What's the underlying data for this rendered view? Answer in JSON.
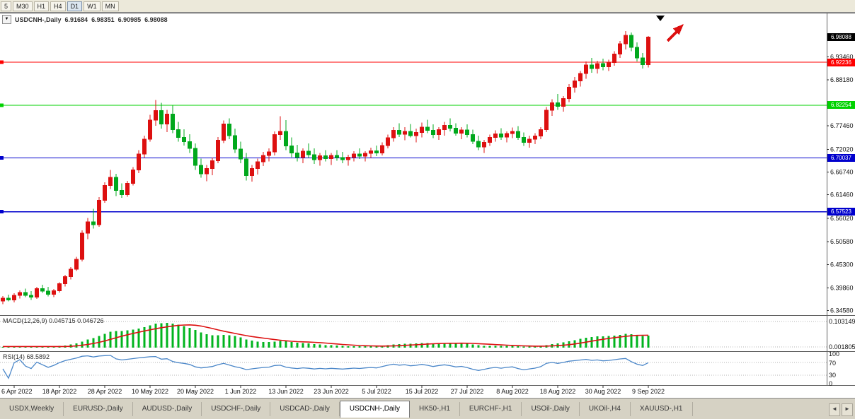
{
  "colors": {
    "up": "#dd1010",
    "down": "#00a81c",
    "macd_hist": "#00b41e",
    "macd_signal": "#dd1010",
    "rsi_line": "#4a86c8",
    "current_price_bg": "#000000",
    "hline_red": "#ff0000",
    "hline_green": "#00d200",
    "hline_blue": "#0000cd"
  },
  "toolbar": {
    "timeframes": [
      "5",
      "M30",
      "H1",
      "H4",
      "D1",
      "W1",
      "MN"
    ],
    "active": "D1"
  },
  "chart": {
    "title": {
      "symbol_period": "USDCNH-,Daily",
      "open": "6.91684",
      "high": "6.98351",
      "low": "6.90985",
      "close": "6.98088"
    },
    "current_price": "6.98088",
    "price_axis_ticks": [
      "6.93460",
      "6.88180",
      "6.77460",
      "6.72020",
      "6.66740",
      "6.61460",
      "6.56020",
      "6.50580",
      "6.45300",
      "6.39860",
      "6.34580"
    ],
    "hlines": [
      {
        "label": "6.92236",
        "value": 6.92236,
        "color": "#ff0000"
      },
      {
        "label": "6.82254",
        "value": 6.82254,
        "color": "#00d200"
      },
      {
        "label": "6.70037",
        "value": 6.70037,
        "color": "#0000cd"
      },
      {
        "label": "6.57523",
        "value": 6.57523,
        "color": "#0000cd"
      }
    ],
    "annotations": [
      {
        "type": "down-triangle-marker",
        "color": "#000000"
      },
      {
        "type": "up-trend-arrow",
        "color": "#dd1010"
      }
    ]
  },
  "chart_data": {
    "type": "candlestick",
    "symbol": "USDCNH-",
    "timeframe": "Daily",
    "x_labels": [
      "6 Apr 2022",
      "18 Apr 2022",
      "28 Apr 2022",
      "10 May 2022",
      "20 May 2022",
      "1 Jun 2022",
      "13 Jun 2022",
      "23 Jun 2022",
      "5 Jul 2022",
      "15 Jul 2022",
      "27 Jul 2022",
      "8 Aug 2022",
      "18 Aug 2022",
      "30 Aug 2022",
      "9 Sep 2022"
    ],
    "x_label_bars": [
      2,
      10,
      18,
      26,
      34,
      42,
      50,
      58,
      66,
      74,
      82,
      90,
      98,
      106,
      114
    ],
    "price_range": [
      6.3458,
      7.034
    ],
    "candles": [
      [
        6.368,
        6.38,
        6.361,
        6.375
      ],
      [
        6.375,
        6.383,
        6.367,
        6.371
      ],
      [
        6.371,
        6.386,
        6.365,
        6.381
      ],
      [
        6.381,
        6.393,
        6.374,
        6.388
      ],
      [
        6.388,
        6.397,
        6.377,
        6.381
      ],
      [
        6.381,
        6.391,
        6.371,
        6.377
      ],
      [
        6.377,
        6.401,
        6.373,
        6.397
      ],
      [
        6.397,
        6.406,
        6.387,
        6.391
      ],
      [
        6.391,
        6.401,
        6.379,
        6.384
      ],
      [
        6.384,
        6.396,
        6.377,
        6.392
      ],
      [
        6.392,
        6.412,
        6.388,
        6.408
      ],
      [
        6.408,
        6.429,
        6.402,
        6.425
      ],
      [
        6.425,
        6.447,
        6.418,
        6.442
      ],
      [
        6.442,
        6.471,
        6.438,
        6.465
      ],
      [
        6.465,
        6.532,
        6.46,
        6.526
      ],
      [
        6.526,
        6.561,
        6.512,
        6.552
      ],
      [
        6.552,
        6.582,
        6.536,
        6.545
      ],
      [
        6.545,
        6.609,
        6.54,
        6.602
      ],
      [
        6.602,
        6.644,
        6.596,
        6.636
      ],
      [
        6.636,
        6.672,
        6.628,
        6.655
      ],
      [
        6.655,
        6.663,
        6.612,
        6.625
      ],
      [
        6.625,
        6.641,
        6.608,
        6.615
      ],
      [
        6.615,
        6.647,
        6.61,
        6.641
      ],
      [
        6.641,
        6.679,
        6.636,
        6.672
      ],
      [
        6.672,
        6.718,
        6.665,
        6.709
      ],
      [
        6.709,
        6.752,
        6.7,
        6.744
      ],
      [
        6.744,
        6.8,
        6.738,
        6.788
      ],
      [
        6.788,
        6.835,
        6.775,
        6.81
      ],
      [
        6.81,
        6.828,
        6.768,
        6.779
      ],
      [
        6.779,
        6.812,
        6.76,
        6.802
      ],
      [
        6.802,
        6.822,
        6.758,
        6.766
      ],
      [
        6.766,
        6.784,
        6.738,
        6.748
      ],
      [
        6.748,
        6.767,
        6.729,
        6.738
      ],
      [
        6.738,
        6.755,
        6.712,
        6.722
      ],
      [
        6.722,
        6.734,
        6.672,
        6.683
      ],
      [
        6.683,
        6.699,
        6.654,
        6.663
      ],
      [
        6.663,
        6.684,
        6.646,
        6.676
      ],
      [
        6.676,
        6.701,
        6.66,
        6.694
      ],
      [
        6.694,
        6.749,
        6.688,
        6.741
      ],
      [
        6.741,
        6.787,
        6.735,
        6.779
      ],
      [
        6.779,
        6.792,
        6.744,
        6.752
      ],
      [
        6.752,
        6.768,
        6.712,
        6.721
      ],
      [
        6.721,
        6.738,
        6.688,
        6.698
      ],
      [
        6.698,
        6.712,
        6.648,
        6.659
      ],
      [
        6.659,
        6.684,
        6.645,
        6.676
      ],
      [
        6.676,
        6.699,
        6.662,
        6.691
      ],
      [
        6.691,
        6.714,
        6.681,
        6.706
      ],
      [
        6.706,
        6.722,
        6.692,
        6.714
      ],
      [
        6.714,
        6.762,
        6.706,
        6.754
      ],
      [
        6.754,
        6.797,
        6.742,
        6.762
      ],
      [
        6.762,
        6.788,
        6.718,
        6.728
      ],
      [
        6.728,
        6.748,
        6.702,
        6.712
      ],
      [
        6.712,
        6.731,
        6.692,
        6.702
      ],
      [
        6.702,
        6.722,
        6.688,
        6.716
      ],
      [
        6.716,
        6.734,
        6.7,
        6.708
      ],
      [
        6.708,
        6.722,
        6.686,
        6.696
      ],
      [
        6.696,
        6.712,
        6.682,
        6.705
      ],
      [
        6.705,
        6.718,
        6.692,
        6.699
      ],
      [
        6.699,
        6.712,
        6.684,
        6.706
      ],
      [
        6.706,
        6.718,
        6.694,
        6.701
      ],
      [
        6.701,
        6.714,
        6.688,
        6.696
      ],
      [
        6.696,
        6.708,
        6.682,
        6.702
      ],
      [
        6.702,
        6.716,
        6.692,
        6.709
      ],
      [
        6.709,
        6.722,
        6.698,
        6.704
      ],
      [
        6.704,
        6.716,
        6.692,
        6.711
      ],
      [
        6.711,
        6.724,
        6.7,
        6.717
      ],
      [
        6.717,
        6.729,
        6.704,
        6.712
      ],
      [
        6.712,
        6.736,
        6.706,
        6.729
      ],
      [
        6.729,
        6.754,
        6.722,
        6.747
      ],
      [
        6.747,
        6.772,
        6.738,
        6.764
      ],
      [
        6.764,
        6.781,
        6.749,
        6.755
      ],
      [
        6.755,
        6.772,
        6.741,
        6.762
      ],
      [
        6.762,
        6.779,
        6.748,
        6.752
      ],
      [
        6.752,
        6.768,
        6.736,
        6.759
      ],
      [
        6.759,
        6.782,
        6.748,
        6.772
      ],
      [
        6.772,
        6.789,
        6.758,
        6.764
      ],
      [
        6.764,
        6.778,
        6.746,
        6.754
      ],
      [
        6.754,
        6.772,
        6.742,
        6.766
      ],
      [
        6.766,
        6.784,
        6.752,
        6.776
      ],
      [
        6.776,
        6.792,
        6.762,
        6.769
      ],
      [
        6.769,
        6.781,
        6.752,
        6.758
      ],
      [
        6.758,
        6.772,
        6.744,
        6.765
      ],
      [
        6.765,
        6.778,
        6.748,
        6.754
      ],
      [
        6.754,
        6.766,
        6.732,
        6.739
      ],
      [
        6.739,
        6.752,
        6.718,
        6.726
      ],
      [
        6.726,
        6.742,
        6.712,
        6.736
      ],
      [
        6.736,
        6.754,
        6.728,
        6.748
      ],
      [
        6.748,
        6.764,
        6.738,
        6.756
      ],
      [
        6.756,
        6.769,
        6.742,
        6.749
      ],
      [
        6.749,
        6.762,
        6.736,
        6.757
      ],
      [
        6.757,
        6.771,
        6.746,
        6.762
      ],
      [
        6.762,
        6.774,
        6.742,
        6.748
      ],
      [
        6.748,
        6.759,
        6.728,
        6.736
      ],
      [
        6.736,
        6.752,
        6.724,
        6.744
      ],
      [
        6.744,
        6.758,
        6.732,
        6.751
      ],
      [
        6.751,
        6.772,
        6.744,
        6.766
      ],
      [
        6.766,
        6.818,
        6.76,
        6.811
      ],
      [
        6.811,
        6.836,
        6.798,
        6.828
      ],
      [
        6.828,
        6.849,
        6.812,
        6.82
      ],
      [
        6.82,
        6.844,
        6.808,
        6.838
      ],
      [
        6.838,
        6.872,
        6.83,
        6.864
      ],
      [
        6.864,
        6.888,
        6.852,
        6.879
      ],
      [
        6.879,
        6.902,
        6.866,
        6.896
      ],
      [
        6.896,
        6.924,
        6.884,
        6.916
      ],
      [
        6.916,
        6.932,
        6.898,
        6.908
      ],
      [
        6.908,
        6.926,
        6.896,
        6.919
      ],
      [
        6.919,
        6.931,
        6.904,
        6.912
      ],
      [
        6.912,
        6.928,
        6.902,
        6.922
      ],
      [
        6.922,
        6.948,
        6.914,
        6.941
      ],
      [
        6.941,
        6.972,
        6.932,
        6.965
      ],
      [
        6.965,
        6.995,
        6.952,
        6.985
      ],
      [
        6.985,
        6.991,
        6.948,
        6.957
      ],
      [
        6.957,
        6.968,
        6.924,
        6.932
      ],
      [
        6.932,
        6.944,
        6.908,
        6.917
      ],
      [
        6.91684,
        6.98351,
        6.90985,
        6.98088
      ]
    ]
  },
  "macd": {
    "label": "MACD(12,26,9)",
    "value": "0.045715",
    "signal_value": "0.046726",
    "axis_max": "0.103149",
    "axis_min": "0.001805",
    "params": {
      "fast": 12,
      "slow": 26,
      "signal": 9
    }
  },
  "rsi": {
    "label": "RSI(14)",
    "value": "68.5892",
    "period": 14,
    "levels": [
      "100",
      "70",
      "30",
      "0"
    ]
  },
  "tabs": {
    "items": [
      "USDX,Weekly",
      "EURUSD-,Daily",
      "AUDUSD-,Daily",
      "USDCHF-,Daily",
      "USDCAD-,Daily",
      "USDCNH-,Daily",
      "HK50-,H1",
      "EURCHF-,H1",
      "USOil-,Daily",
      "UKOil-,H4",
      "XAUUSD-,H1"
    ],
    "active_index": 5
  },
  "ui": {
    "collapse_icon": "▼",
    "tab_scroll_left": "◄",
    "tab_scroll_right": "►"
  }
}
